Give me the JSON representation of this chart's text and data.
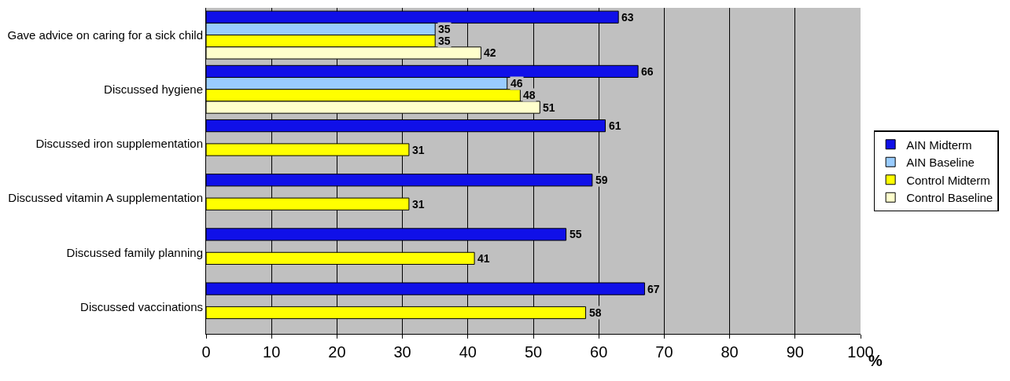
{
  "chart_data": {
    "type": "bar",
    "orientation": "horizontal",
    "xlabel": "%",
    "categories": [
      "Gave advice on caring for a sick child",
      "Discussed hygiene",
      "Discussed iron supplementation",
      "Discussed vitamin A supplementation",
      "Discussed family planning",
      "Discussed vaccinations"
    ],
    "series": [
      {
        "name": "AIN Midterm",
        "color": "#1010e8",
        "values": [
          63,
          66,
          61,
          59,
          55,
          67
        ]
      },
      {
        "name": "AIN Baseline",
        "color": "#99ccff",
        "values": [
          35,
          46,
          null,
          null,
          null,
          null
        ]
      },
      {
        "name": "Control Midterm",
        "color": "#ffff00",
        "values": [
          35,
          48,
          31,
          31,
          41,
          58
        ]
      },
      {
        "name": "Control Baseline",
        "color": "#ffffcc",
        "values": [
          42,
          51,
          null,
          null,
          null,
          null
        ]
      }
    ],
    "xlim": [
      0,
      100
    ],
    "xticks": [
      0,
      10,
      20,
      30,
      40,
      50,
      60,
      70,
      80,
      90,
      100
    ],
    "grid": "x",
    "legend": "right",
    "data_labels": true
  }
}
